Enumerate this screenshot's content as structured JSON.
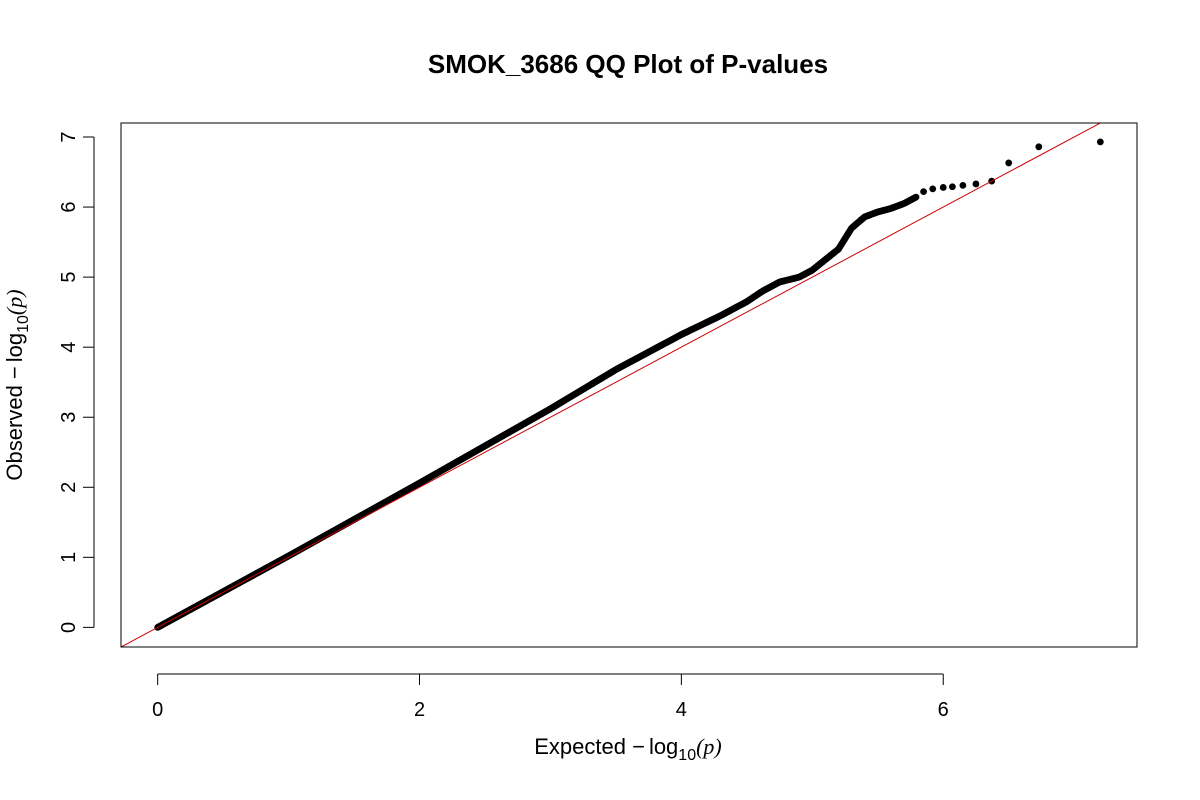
{
  "chart_data": {
    "type": "scatter",
    "title": "SMOK_3686 QQ Plot of P-values",
    "xlabel": {
      "prefix": "Expected ",
      "minus": "−",
      "log": "log",
      "sub": "10",
      "open": "(",
      "var": "p",
      "close": ")"
    },
    "ylabel": {
      "prefix": "Observed ",
      "minus": "−",
      "log": "log",
      "sub": "10",
      "open": "(",
      "var": "p",
      "close": ")"
    },
    "xlim": [
      -0.28,
      7.48
    ],
    "ylim": [
      -0.28,
      7.2
    ],
    "xticks": [
      0,
      2,
      4,
      6
    ],
    "xtick_labels": [
      "0",
      "2",
      "4",
      "6"
    ],
    "yticks": [
      0,
      1,
      2,
      3,
      4,
      5,
      6,
      7
    ],
    "ytick_labels": [
      "0",
      "1",
      "2",
      "3",
      "4",
      "5",
      "6",
      "7"
    ],
    "grid": false,
    "reference_line": {
      "slope": 1,
      "intercept": 0,
      "color": "#cc0000"
    },
    "point_color": "#000000",
    "curve_knots": [
      [
        0.0,
        0.0
      ],
      [
        1.0,
        1.02
      ],
      [
        2.0,
        2.06
      ],
      [
        3.0,
        3.12
      ],
      [
        3.5,
        3.68
      ],
      [
        4.0,
        4.18
      ],
      [
        4.3,
        4.45
      ],
      [
        4.5,
        4.65
      ],
      [
        4.62,
        4.8
      ],
      [
        4.75,
        4.93
      ],
      [
        4.9,
        5.0
      ],
      [
        5.0,
        5.1
      ],
      [
        5.1,
        5.25
      ],
      [
        5.2,
        5.4
      ],
      [
        5.3,
        5.7
      ],
      [
        5.4,
        5.86
      ],
      [
        5.5,
        5.93
      ],
      [
        5.6,
        5.98
      ],
      [
        5.7,
        6.05
      ],
      [
        5.8,
        6.15
      ]
    ],
    "tail_points": [
      [
        5.85,
        6.22
      ],
      [
        5.92,
        6.26
      ],
      [
        6.0,
        6.28
      ],
      [
        6.07,
        6.29
      ],
      [
        6.15,
        6.31
      ],
      [
        6.25,
        6.33
      ],
      [
        6.37,
        6.37
      ],
      [
        6.5,
        6.63
      ],
      [
        6.73,
        6.86
      ],
      [
        7.2,
        6.93
      ]
    ]
  }
}
